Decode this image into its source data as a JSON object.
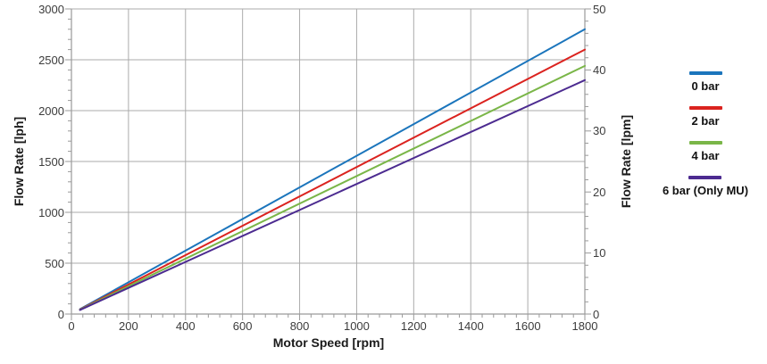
{
  "chart_data": {
    "type": "line",
    "xlabel": "Motor Speed [rpm]",
    "ylabel_left": "Flow Rate [lph]",
    "ylabel_right": "Flow Rate [lpm]",
    "xlim": [
      0,
      1800
    ],
    "ylim_left": [
      0,
      3000
    ],
    "ylim_right": [
      0,
      50
    ],
    "x_major_step": 200,
    "x_minor_step": 40,
    "y_left_major_step": 500,
    "y_left_minor_step": 100,
    "y_right_major_step": 10,
    "y_right_minor_step": 2,
    "x_tick_labels": [
      "0",
      "200",
      "400",
      "600",
      "800",
      "1000",
      "1200",
      "1400",
      "1600",
      "1800"
    ],
    "y_left_tick_labels": [
      "0",
      "500",
      "1000",
      "1500",
      "2000",
      "2500",
      "3000"
    ],
    "y_right_tick_labels": [
      "0",
      "10",
      "20",
      "30",
      "40",
      "50"
    ],
    "grid": true,
    "legend_position": "right",
    "x": [
      30,
      1800
    ],
    "series": [
      {
        "name": "0 bar",
        "color": "#1B75BC",
        "values_lph": [
          48,
          2800
        ]
      },
      {
        "name": "2 bar",
        "color": "#DB231F",
        "values_lph": [
          45,
          2600
        ]
      },
      {
        "name": "4 bar",
        "color": "#7AB648",
        "values_lph": [
          43,
          2440
        ]
      },
      {
        "name": "6 bar (Only MU)",
        "color": "#4C2B90",
        "values_lph": [
          40,
          2300
        ]
      }
    ]
  },
  "style": {
    "background": "#ffffff",
    "gridline_color": "#ababab",
    "axis_color": "#9a9a9a",
    "tick_label_color": "#3c3c3c",
    "title_color": "#1a1a1a"
  }
}
